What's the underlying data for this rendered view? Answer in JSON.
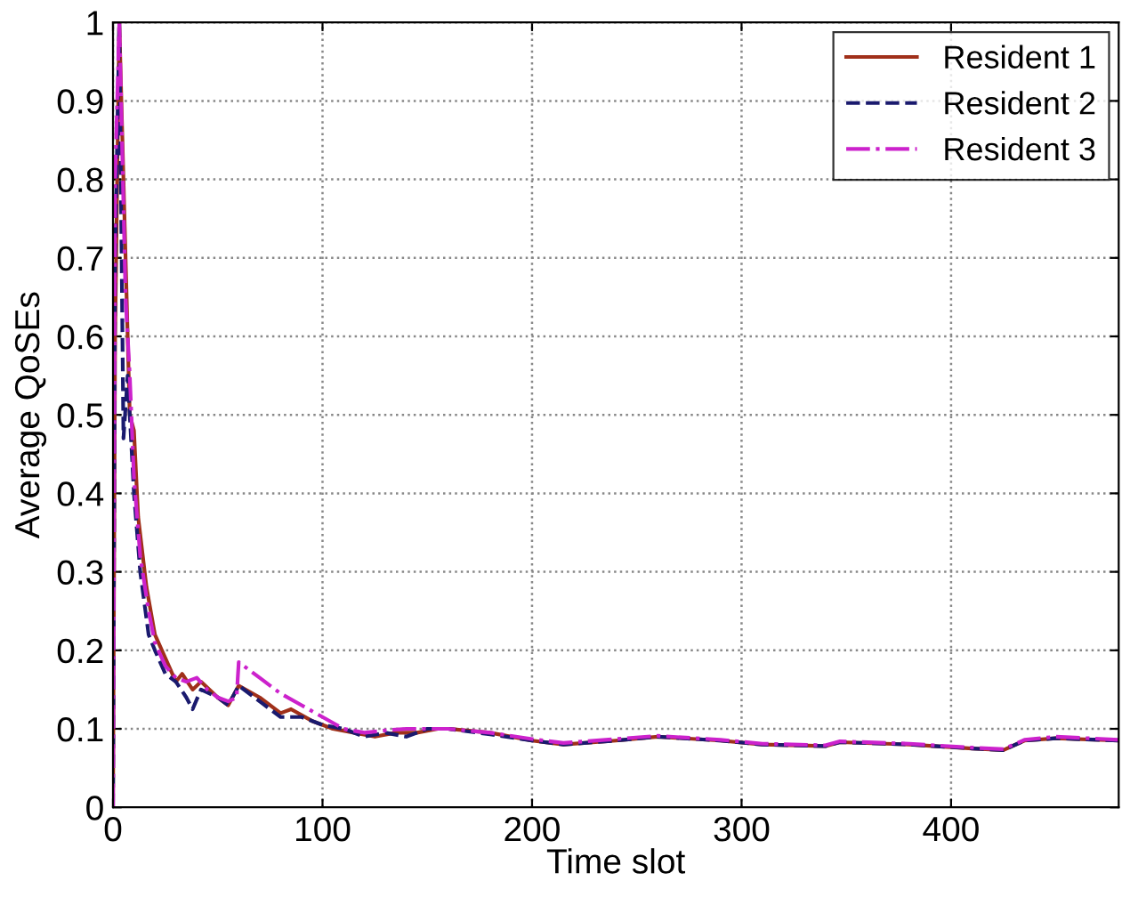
{
  "chart_data": {
    "type": "line",
    "xlabel": "Time slot",
    "ylabel": "Average QoSEs",
    "xlim": [
      0,
      480
    ],
    "ylim": [
      0,
      1
    ],
    "xticks": [
      0,
      100,
      200,
      300,
      400
    ],
    "yticks": [
      0,
      0.1,
      0.2,
      0.3,
      0.4,
      0.5,
      0.6,
      0.7,
      0.8,
      0.9,
      1
    ],
    "grid": true,
    "legend": "top right",
    "marker": "none",
    "series": [
      {
        "name": "Resident 1",
        "color": "#a0301a",
        "line_style": "solid",
        "x": [
          0,
          1,
          3,
          6,
          8,
          10,
          12,
          16,
          20,
          25,
          30,
          33,
          38,
          42,
          50,
          55,
          60,
          70,
          80,
          85,
          95,
          105,
          115,
          125,
          135,
          145,
          155,
          160,
          180,
          200,
          215,
          240,
          260,
          290,
          310,
          340,
          347,
          380,
          410,
          425,
          435,
          450,
          480
        ],
        "values": [
          0,
          0.6,
          1,
          0.7,
          0.5,
          0.48,
          0.37,
          0.28,
          0.22,
          0.19,
          0.16,
          0.17,
          0.15,
          0.16,
          0.14,
          0.13,
          0.155,
          0.14,
          0.12,
          0.125,
          0.11,
          0.1,
          0.095,
          0.09,
          0.095,
          0.095,
          0.1,
          0.1,
          0.095,
          0.085,
          0.08,
          0.085,
          0.09,
          0.085,
          0.08,
          0.078,
          0.083,
          0.08,
          0.075,
          0.073,
          0.085,
          0.088,
          0.085
        ]
      },
      {
        "name": "Resident 2",
        "color": "#1a1a6e",
        "line_style": "dashed",
        "x": [
          0,
          1,
          3,
          5,
          7,
          10,
          13,
          17,
          20,
          25,
          30,
          35,
          38,
          42,
          50,
          55,
          60,
          70,
          80,
          90,
          100,
          110,
          120,
          130,
          140,
          150,
          160,
          180,
          200,
          215,
          240,
          260,
          290,
          310,
          340,
          347,
          380,
          410,
          425,
          435,
          450,
          480
        ],
        "values": [
          0,
          0.7,
          1,
          0.47,
          0.55,
          0.4,
          0.3,
          0.22,
          0.2,
          0.17,
          0.16,
          0.14,
          0.125,
          0.15,
          0.14,
          0.13,
          0.155,
          0.135,
          0.115,
          0.115,
          0.105,
          0.1,
          0.09,
          0.095,
          0.09,
          0.1,
          0.1,
          0.093,
          0.085,
          0.08,
          0.085,
          0.09,
          0.085,
          0.08,
          0.078,
          0.083,
          0.08,
          0.075,
          0.073,
          0.085,
          0.088,
          0.085
        ]
      },
      {
        "name": "Resident 3",
        "color": "#cc22cc",
        "line_style": "dashdot",
        "x": [
          0,
          1,
          3,
          6,
          8,
          10,
          13,
          17,
          20,
          25,
          30,
          35,
          40,
          45,
          50,
          55,
          59,
          60,
          70,
          80,
          90,
          100,
          110,
          120,
          130,
          140,
          150,
          160,
          180,
          200,
          215,
          240,
          260,
          290,
          310,
          340,
          347,
          380,
          410,
          425,
          435,
          450,
          480
        ],
        "values": [
          0,
          0.8,
          1,
          0.65,
          0.55,
          0.42,
          0.32,
          0.25,
          0.21,
          0.18,
          0.165,
          0.16,
          0.165,
          0.15,
          0.14,
          0.135,
          0.14,
          0.185,
          0.165,
          0.145,
          0.13,
          0.115,
          0.1,
          0.095,
          0.098,
          0.1,
          0.1,
          0.1,
          0.095,
          0.087,
          0.082,
          0.087,
          0.091,
          0.086,
          0.081,
          0.079,
          0.084,
          0.081,
          0.076,
          0.074,
          0.086,
          0.09,
          0.086
        ]
      }
    ]
  }
}
